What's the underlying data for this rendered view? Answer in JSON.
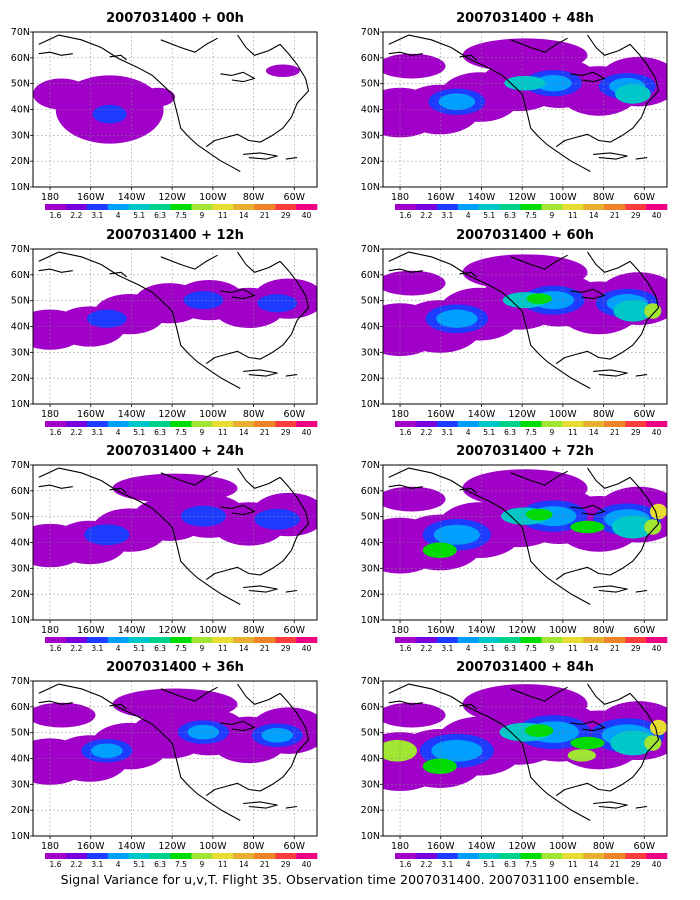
{
  "caption": "Signal Variance for u,v,T. Flight 35. Observation time 2007031400. 2007031100 ensemble.",
  "lon_labels": [
    "180",
    "160W",
    "140W",
    "120W",
    "100W",
    "80W",
    "60W"
  ],
  "lat_labels": [
    "10N",
    "20N",
    "30N",
    "40N",
    "50N",
    "60N",
    "70N"
  ],
  "colorbar": {
    "labels": [
      "1.6",
      "2.2",
      "3.1",
      "4",
      "5.1",
      "6.3",
      "7.5",
      "9",
      "11",
      "14",
      "21",
      "29",
      "40"
    ],
    "colors": [
      "#a000c8",
      "#7800dc",
      "#1e3cff",
      "#00a0ff",
      "#00c8c8",
      "#00d28c",
      "#00dc00",
      "#a0e632",
      "#e6dc32",
      "#e6af2d",
      "#f08228",
      "#fa3c3c",
      "#f00082"
    ]
  },
  "panels": [
    {
      "title": "2007031400 + 00h",
      "lead": 0
    },
    {
      "title": "2007031400 + 48h",
      "lead": 48
    },
    {
      "title": "2007031400 + 12h",
      "lead": 12
    },
    {
      "title": "2007031400 + 60h",
      "lead": 60
    },
    {
      "title": "2007031400 + 24h",
      "lead": 24
    },
    {
      "title": "2007031400 + 72h",
      "lead": 72
    },
    {
      "title": "2007031400 + 36h",
      "lead": 36
    },
    {
      "title": "2007031400 + 84h",
      "lead": 84
    }
  ]
}
